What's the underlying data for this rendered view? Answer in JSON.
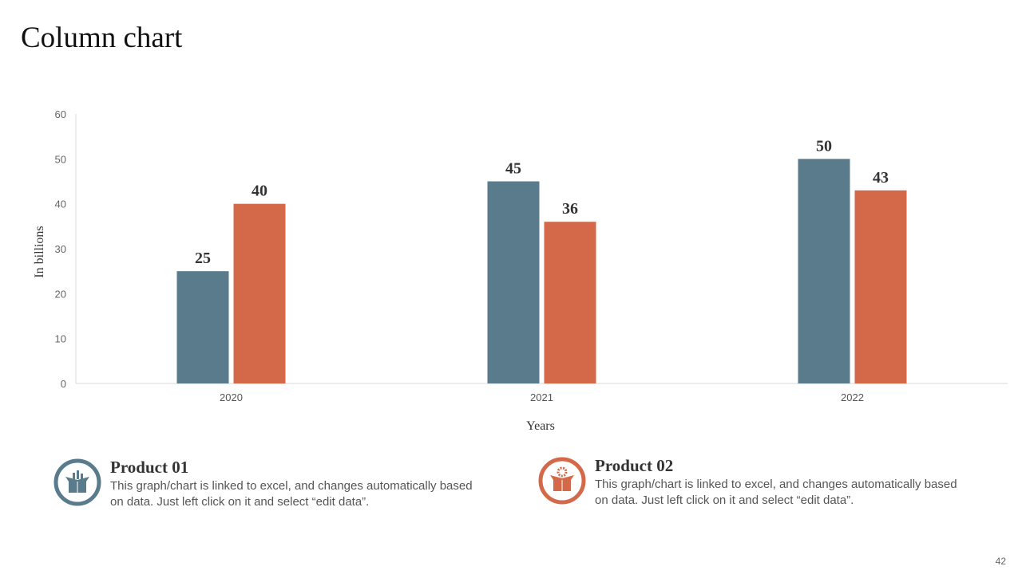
{
  "title": "Column chart",
  "colors": {
    "series1": "#597b8b",
    "series2": "#d4694a"
  },
  "chart_data": {
    "type": "bar",
    "categories": [
      "2020",
      "2021",
      "2022"
    ],
    "series": [
      {
        "values": [
          25,
          45,
          50
        ],
        "color": "#597b8b"
      },
      {
        "values": [
          40,
          36,
          43
        ],
        "color": "#d4694a"
      }
    ],
    "xlabel": "Years",
    "ylabel": "In billions",
    "ylim": [
      0,
      60
    ],
    "yticks": [
      0,
      10,
      20,
      30,
      40,
      50,
      60
    ],
    "grid": false,
    "data_labels": true
  },
  "products": [
    {
      "title": "Product 01",
      "text": "This graph/chart is linked to excel, and changes automatically based on data. Just left click on it and select “edit data”.",
      "icon": "box-chart-icon",
      "color": "#597b8b"
    },
    {
      "title": "Product 02",
      "text": "This graph/chart is linked to excel, and changes automatically based on data. Just left click on it and select “edit data”.",
      "icon": "box-gear-icon",
      "color": "#d4694a"
    }
  ],
  "page_number": "42"
}
